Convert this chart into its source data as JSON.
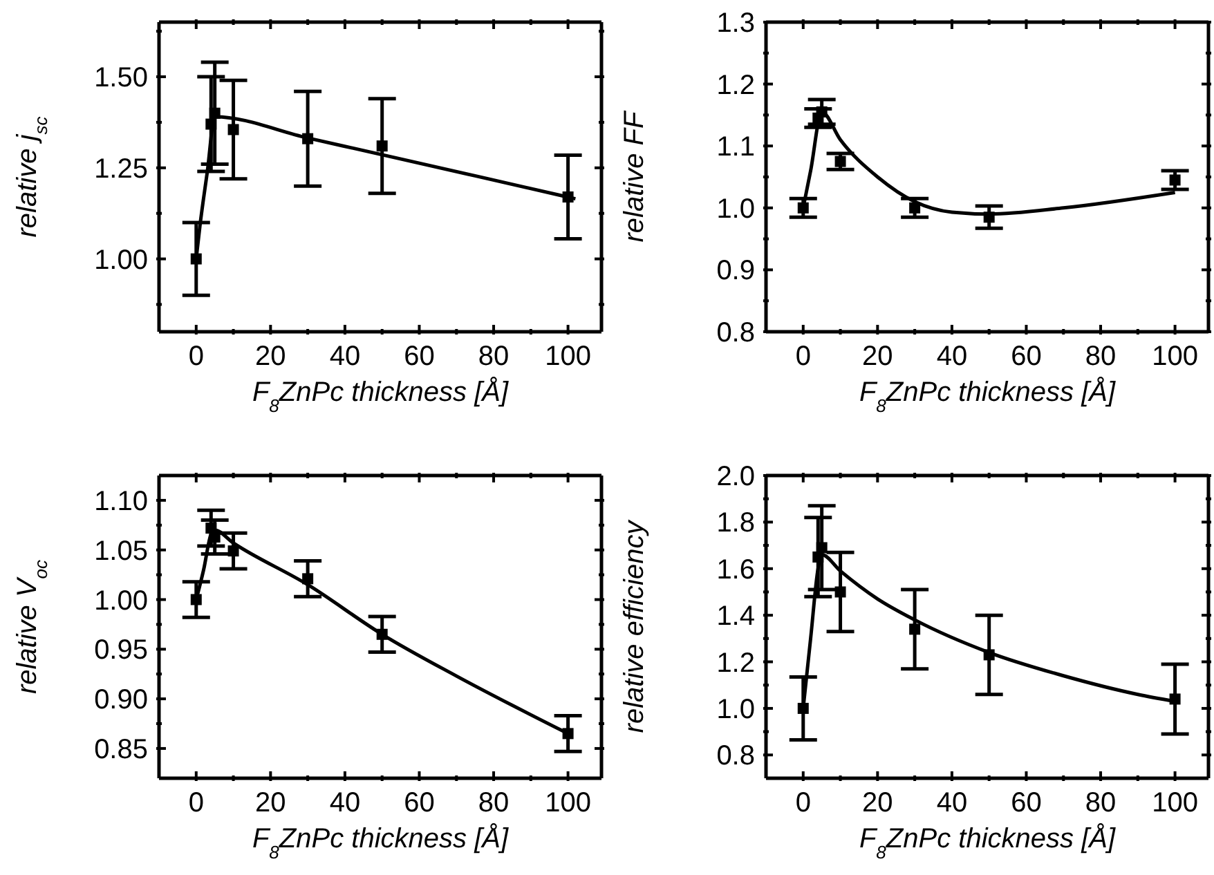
{
  "chart_data": [
    {
      "type": "scatter",
      "ylabel": "relative j$_{sc}$",
      "xlabel": "F$_{8}$ZnPc thickness [Å]",
      "xlim": [
        -10,
        109
      ],
      "ylim": [
        0.8,
        1.65
      ],
      "xticks": [
        0,
        {
          "value": 10,
          "label": null
        },
        20,
        {
          "value": 30,
          "label": null
        },
        40,
        {
          "value": 50,
          "label": null
        },
        60,
        {
          "value": 70,
          "label": null
        },
        80,
        {
          "value": 90,
          "label": null
        },
        100
      ],
      "yticks": [
        {
          "value": 0.875,
          "label": null
        },
        {
          "value": 1,
          "label": "1.00"
        },
        {
          "value": 1.125,
          "label": null
        },
        {
          "value": 1.25,
          "label": "1.25"
        },
        {
          "value": 1.375,
          "label": null
        },
        {
          "value": 1.5,
          "label": "1.50"
        },
        {
          "value": 1.625,
          "label": null
        }
      ],
      "series": [
        {
          "color": "#000000",
          "marker": "square",
          "x": [
            0,
            4,
            5,
            10,
            30,
            50,
            100
          ],
          "values": [
            1.0,
            1.37,
            1.4,
            1.355,
            1.33,
            1.31,
            1.17
          ],
          "errors": [
            0.1,
            0.13,
            0.14,
            0.135,
            0.13,
            0.13,
            0.115
          ]
        },
        {
          "type": "line",
          "color": "#000000",
          "marker": "none",
          "x": [
            0,
            1,
            3,
            5,
            30,
            50,
            75,
            102
          ],
          "values": [
            1.0,
            1.09,
            1.24,
            1.39,
            1.332,
            1.286,
            1.228,
            1.165
          ]
        }
      ]
    },
    {
      "type": "scatter",
      "ylabel": "relative FF",
      "xlabel": "F$_{8}$ZnPc thickness [Å]",
      "xlim": [
        -10,
        109
      ],
      "ylim": [
        0.8,
        1.3
      ],
      "xticks": [
        0,
        {
          "value": 10,
          "label": null
        },
        20,
        {
          "value": 30,
          "label": null
        },
        40,
        {
          "value": 50,
          "label": null
        },
        60,
        {
          "value": 70,
          "label": null
        },
        80,
        {
          "value": 90,
          "label": null
        },
        100
      ],
      "yticks": [
        {
          "value": 0.8,
          "label": "0.8"
        },
        {
          "value": 0.85,
          "label": null
        },
        {
          "value": 0.9,
          "label": "0.9"
        },
        {
          "value": 0.95,
          "label": null
        },
        {
          "value": 1,
          "label": "1.0"
        },
        {
          "value": 1.05,
          "label": null
        },
        {
          "value": 1.1,
          "label": "1.1"
        },
        {
          "value": 1.15,
          "label": null
        },
        {
          "value": 1.2,
          "label": "1.2"
        },
        {
          "value": 1.25,
          "label": null
        },
        {
          "value": 1.3,
          "label": "1.3"
        }
      ],
      "series": [
        {
          "color": "#000000",
          "marker": "square",
          "x": [
            0,
            4,
            5,
            10,
            30,
            50,
            100
          ],
          "values": [
            1.0,
            1.145,
            1.155,
            1.075,
            1.0,
            0.985,
            1.045
          ],
          "errors": [
            0.015,
            0.015,
            0.02,
            0.013,
            0.015,
            0.018,
            0.015
          ]
        },
        {
          "type": "line",
          "color": "#000000",
          "marker": "none",
          "x": [
            0,
            2,
            5,
            10,
            20,
            30,
            40,
            50,
            70,
            100
          ],
          "values": [
            1.0,
            1.06,
            1.155,
            1.11,
            1.05,
            1.01,
            0.993,
            0.99,
            1.0,
            1.025
          ]
        }
      ]
    },
    {
      "type": "scatter",
      "ylabel": "relative V$_{oc}$",
      "xlabel": "F$_{8}$ZnPc thickness [Å]",
      "xlim": [
        -10,
        109
      ],
      "ylim": [
        0.82,
        1.125
      ],
      "xticks": [
        0,
        {
          "value": 10,
          "label": null
        },
        20,
        {
          "value": 30,
          "label": null
        },
        40,
        {
          "value": 50,
          "label": null
        },
        60,
        {
          "value": 70,
          "label": null
        },
        80,
        {
          "value": 90,
          "label": null
        },
        100
      ],
      "yticks": [
        {
          "value": 0.85,
          "label": "0.85"
        },
        {
          "value": 0.875,
          "label": null
        },
        {
          "value": 0.9,
          "label": "0.90"
        },
        {
          "value": 0.925,
          "label": null
        },
        {
          "value": 0.95,
          "label": "0.95"
        },
        {
          "value": 0.975,
          "label": null
        },
        {
          "value": 1,
          "label": "1.00"
        },
        {
          "value": 1.025,
          "label": null
        },
        {
          "value": 1.05,
          "label": "1.05"
        },
        {
          "value": 1.075,
          "label": null
        },
        {
          "value": 1.1,
          "label": "1.10"
        }
      ],
      "series": [
        {
          "color": "#000000",
          "marker": "square",
          "x": [
            0,
            4,
            5,
            10,
            30,
            50,
            100
          ],
          "values": [
            1.0,
            1.072,
            1.063,
            1.049,
            1.021,
            0.965,
            0.865
          ],
          "errors": [
            0.018,
            0.018,
            0.017,
            0.018,
            0.018,
            0.018,
            0.018
          ]
        },
        {
          "type": "line",
          "color": "#000000",
          "marker": "none",
          "x": [
            0,
            2,
            4,
            5,
            10,
            30,
            50,
            70,
            100
          ],
          "values": [
            1.0,
            1.03,
            1.066,
            1.07,
            1.057,
            1.015,
            0.965,
            0.923,
            0.865
          ]
        }
      ]
    },
    {
      "type": "scatter",
      "ylabel": "relative efficiency",
      "xlabel": "F$_{8}$ZnPc  thickness [Å]",
      "xlim": [
        -10,
        109
      ],
      "ylim": [
        0.7,
        2.0
      ],
      "xticks": [
        0,
        {
          "value": 10,
          "label": null
        },
        20,
        {
          "value": 30,
          "label": null
        },
        40,
        {
          "value": 50,
          "label": null
        },
        60,
        {
          "value": 70,
          "label": null
        },
        80,
        {
          "value": 90,
          "label": null
        },
        100
      ],
      "yticks": [
        {
          "value": 0.8,
          "label": "0.8"
        },
        {
          "value": 0.9,
          "label": null
        },
        {
          "value": 1,
          "label": "1.0"
        },
        {
          "value": 1.1,
          "label": null
        },
        {
          "value": 1.2,
          "label": "1.2"
        },
        {
          "value": 1.3,
          "label": null
        },
        {
          "value": 1.4,
          "label": "1.4"
        },
        {
          "value": 1.5,
          "label": null
        },
        {
          "value": 1.6,
          "label": "1.6"
        },
        {
          "value": 1.7,
          "label": null
        },
        {
          "value": 1.8,
          "label": "1.8"
        },
        {
          "value": 1.9,
          "label": null
        },
        {
          "value": 2.0,
          "label": "2.0"
        }
      ],
      "series": [
        {
          "color": "#000000",
          "marker": "square",
          "x": [
            0,
            4,
            5,
            10,
            30,
            50,
            100
          ],
          "values": [
            1.0,
            1.65,
            1.69,
            1.5,
            1.34,
            1.23,
            1.04
          ],
          "errors": [
            0.135,
            0.17,
            0.18,
            0.17,
            0.17,
            0.17,
            0.15
          ]
        },
        {
          "type": "line",
          "color": "#000000",
          "marker": "none",
          "x": [
            0,
            2,
            4,
            5,
            10,
            20,
            30,
            50,
            70,
            90,
            100
          ],
          "values": [
            1.0,
            1.3,
            1.6,
            1.66,
            1.59,
            1.47,
            1.38,
            1.24,
            1.14,
            1.06,
            1.03
          ]
        }
      ]
    }
  ]
}
